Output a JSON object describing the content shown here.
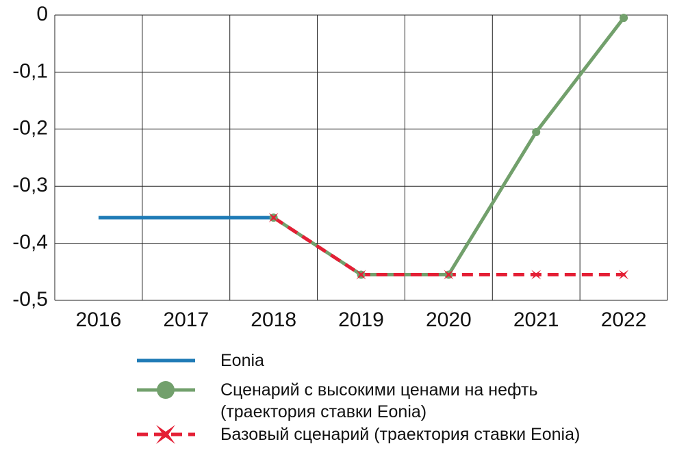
{
  "chart_data": {
    "type": "line",
    "categories": [
      "2016",
      "2017",
      "2018",
      "2019",
      "2020",
      "2021",
      "2022"
    ],
    "ylim": [
      -0.5,
      0
    ],
    "yticks": [
      0,
      {
        "value": -0.1,
        "label": "-0,1"
      },
      {
        "value": -0.2,
        "label": "-0,2"
      },
      {
        "value": -0.3,
        "label": "-0,3"
      },
      {
        "value": -0.4,
        "label": "-0,4"
      },
      {
        "value": -0.5,
        "label": "-0,5"
      }
    ],
    "grid": true,
    "series": [
      {
        "name": "Eonia",
        "color": "#1f7bb6",
        "marker": "none",
        "dashed": false,
        "values": [
          -0.355,
          -0.355,
          -0.355,
          null,
          null,
          null,
          null
        ]
      },
      {
        "name": "Сценарий с высокими ценами на нефть (траектория ставки Eonia)",
        "color": "#72a06c",
        "marker": "circle",
        "dashed": false,
        "values": [
          null,
          null,
          -0.355,
          -0.455,
          -0.455,
          -0.205,
          -0.005
        ]
      },
      {
        "name": "Базовый сценарий (траектория ставки Eonia)",
        "color": "#e41f35",
        "marker": "star",
        "dashed": true,
        "values": [
          null,
          null,
          -0.355,
          -0.455,
          -0.455,
          -0.455,
          -0.455
        ]
      }
    ]
  }
}
